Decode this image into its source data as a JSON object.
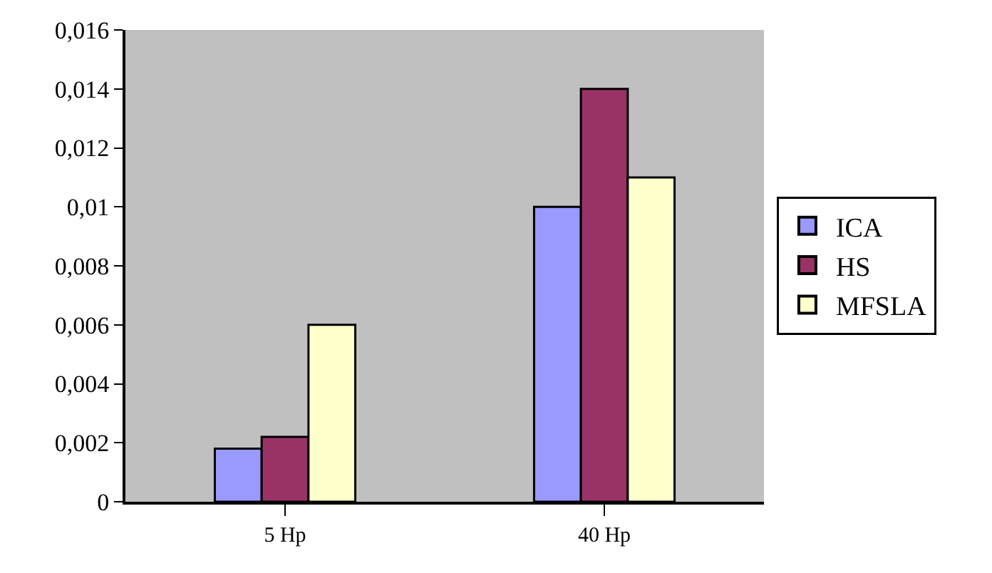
{
  "chart_data": {
    "type": "bar",
    "categories": [
      "5 Hp",
      "40 Hp"
    ],
    "series": [
      {
        "name": "ICA",
        "color": "#9999ff",
        "values": [
          0.0018,
          0.01
        ]
      },
      {
        "name": "HS",
        "color": "#993366",
        "values": [
          0.0022,
          0.014
        ]
      },
      {
        "name": "MFSLA",
        "color": "#ffffcc",
        "values": [
          0.006,
          0.011
        ]
      }
    ],
    "ylim": [
      0,
      0.016
    ],
    "yticks": [
      0,
      {
        "value": 0.002,
        "label": "0,002"
      },
      {
        "value": 0.004,
        "label": "0,004"
      },
      {
        "value": 0.006,
        "label": "0,006"
      },
      {
        "value": 0.008,
        "label": "0,008"
      },
      {
        "value": 0.01,
        "label": "0,01"
      },
      {
        "value": 0.012,
        "label": "0,012"
      },
      {
        "value": 0.014,
        "label": "0,014"
      },
      {
        "value": 0.016,
        "label": "0,016"
      }
    ],
    "grid": false,
    "legend": "right"
  }
}
